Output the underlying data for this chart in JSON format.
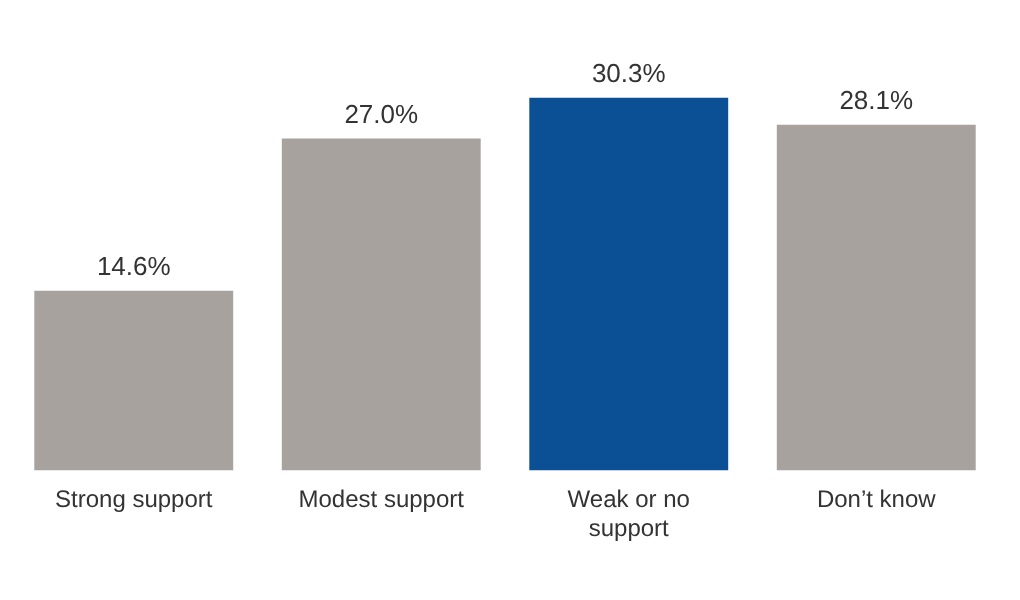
{
  "chart_data": {
    "type": "bar",
    "categories": [
      "Strong support",
      "Modest support",
      "Weak or no support",
      "Don’t know"
    ],
    "values": [
      14.6,
      27.0,
      30.3,
      28.1
    ],
    "colors": [
      "#a8a29e",
      "#a8a29e",
      "#0b4f94",
      "#a8a29e"
    ],
    "value_labels": [
      "14.6%",
      "27.0%",
      "30.3%",
      "28.1%"
    ],
    "legend": false,
    "grid": false
  }
}
